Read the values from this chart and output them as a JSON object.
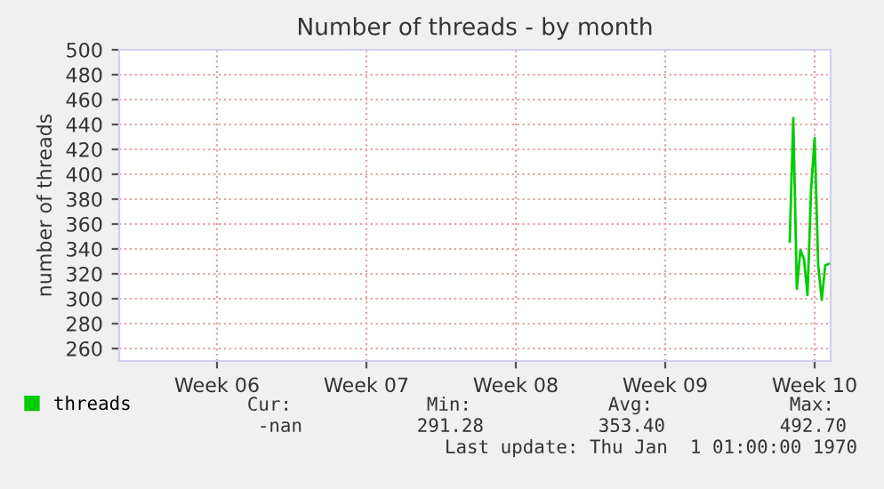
{
  "chart_data": {
    "type": "line",
    "title": "Number of threads - by month",
    "ylabel": "number of threads",
    "categories": [
      null,
      null,
      null,
      null,
      null,
      null,
      null,
      null,
      null,
      null,
      null,
      null,
      null,
      null,
      null,
      null,
      null,
      null,
      null,
      null,
      null,
      null,
      null,
      null,
      null,
      null,
      null,
      "Week 06",
      null,
      null,
      null,
      null,
      null,
      null,
      null,
      null,
      null,
      null,
      null,
      null,
      null,
      null,
      null,
      null,
      null,
      null,
      null,
      null,
      null,
      null,
      null,
      null,
      null,
      null,
      null,
      null,
      null,
      null,
      null,
      null,
      null,
      null,
      null,
      null,
      null,
      null,
      null,
      null,
      null,
      "Week 07",
      null,
      null,
      null,
      null,
      null,
      null,
      null,
      null,
      null,
      null,
      null,
      null,
      null,
      null,
      null,
      null,
      null,
      null,
      null,
      null,
      null,
      null,
      null,
      null,
      null,
      null,
      null,
      null,
      null,
      null,
      null,
      null,
      null,
      null,
      null,
      null,
      null,
      null,
      null,
      null,
      null,
      "Week 08",
      null,
      null,
      null,
      null,
      null,
      null,
      null,
      null,
      null,
      null,
      null,
      null,
      null,
      null,
      null,
      null,
      null,
      null,
      null,
      null,
      null,
      null,
      null,
      null,
      null,
      null,
      null,
      null,
      null,
      null,
      null,
      null,
      null,
      null,
      null,
      null,
      null,
      null,
      null,
      null,
      null,
      "Week 09",
      null,
      null,
      null,
      null,
      null,
      null,
      null,
      null,
      null,
      null,
      null,
      null,
      null,
      null,
      null,
      null,
      null,
      null,
      null,
      null,
      null,
      null,
      null,
      null,
      null,
      null,
      null,
      null,
      null,
      null,
      null,
      null,
      null,
      null,
      null,
      null,
      null,
      null,
      null,
      null,
      null,
      "Week 10",
      null,
      null,
      null,
      null
    ],
    "series": [
      {
        "name": "threads",
        "color": "#00cc00",
        "values": [
          null,
          null,
          null,
          null,
          null,
          null,
          null,
          null,
          null,
          null,
          null,
          null,
          null,
          null,
          null,
          null,
          null,
          null,
          null,
          null,
          null,
          null,
          null,
          null,
          null,
          null,
          null,
          null,
          null,
          null,
          null,
          null,
          null,
          null,
          null,
          null,
          null,
          null,
          null,
          null,
          null,
          null,
          null,
          null,
          null,
          null,
          null,
          null,
          null,
          null,
          null,
          null,
          null,
          null,
          null,
          null,
          null,
          null,
          null,
          null,
          null,
          null,
          null,
          null,
          null,
          null,
          null,
          null,
          null,
          null,
          null,
          null,
          null,
          null,
          null,
          null,
          null,
          null,
          null,
          null,
          null,
          null,
          null,
          null,
          null,
          null,
          null,
          null,
          null,
          null,
          null,
          null,
          null,
          null,
          null,
          null,
          null,
          null,
          null,
          null,
          null,
          null,
          null,
          null,
          null,
          null,
          null,
          null,
          null,
          null,
          null,
          null,
          null,
          null,
          null,
          null,
          null,
          null,
          null,
          null,
          null,
          null,
          null,
          null,
          null,
          null,
          null,
          null,
          null,
          null,
          null,
          null,
          null,
          null,
          null,
          null,
          null,
          null,
          null,
          null,
          null,
          null,
          null,
          null,
          null,
          null,
          null,
          null,
          null,
          null,
          null,
          null,
          null,
          null,
          null,
          null,
          null,
          null,
          null,
          null,
          null,
          null,
          null,
          null,
          null,
          null,
          null,
          null,
          null,
          null,
          null,
          null,
          null,
          null,
          null,
          null,
          null,
          null,
          null,
          null,
          null,
          null,
          null,
          null,
          null,
          null,
          null,
          null,
          346,
          445,
          308,
          339,
          332,
          303,
          388,
          429,
          327,
          299,
          327,
          328
        ]
      }
    ],
    "ylim": [
      250,
      500
    ],
    "yticks": [
      260,
      280,
      300,
      320,
      340,
      360,
      380,
      400,
      420,
      440,
      460,
      480,
      500
    ],
    "grid": true,
    "legend": "bottom left",
    "marker": "none",
    "line_style": "solid",
    "annotations": [
      "Cur:",
      "Min:",
      "Avg:",
      "Max:",
      "-nan",
      "291.28",
      "353.40",
      "492.70",
      "Last update: Thu Jan  1 01:00:00 1970"
    ]
  }
}
